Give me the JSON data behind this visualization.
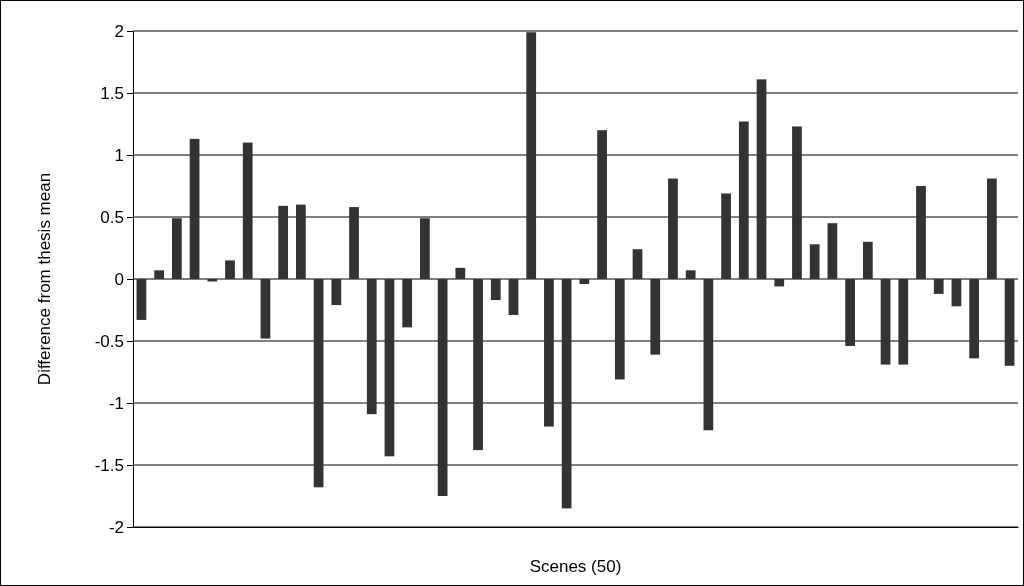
{
  "chart_data": {
    "type": "bar",
    "xlabel": "Scenes (50)",
    "ylabel": "Difference from thesis mean",
    "categories": [
      null,
      null,
      null,
      null,
      null,
      null,
      null,
      null,
      null,
      null,
      null,
      null,
      null,
      null,
      null,
      null,
      null,
      null,
      null,
      null,
      null,
      null,
      null,
      null,
      null,
      null,
      null,
      null,
      null,
      null,
      null,
      null,
      null,
      null,
      null,
      null,
      null,
      null,
      null,
      null,
      null,
      null,
      null,
      null,
      null,
      null,
      null,
      null,
      null,
      null
    ],
    "values": [
      -0.33,
      0.07,
      0.49,
      1.13,
      -0.02,
      0.15,
      1.1,
      -0.48,
      0.59,
      0.6,
      -1.68,
      -0.21,
      0.58,
      -1.09,
      -1.43,
      -0.39,
      0.49,
      -1.75,
      0.09,
      -1.38,
      -0.17,
      -0.29,
      1.99,
      -1.19,
      -1.85,
      -0.04,
      1.2,
      -0.81,
      0.24,
      -0.61,
      0.81,
      0.07,
      -1.22,
      0.69,
      1.27,
      1.61,
      -0.06,
      1.23,
      0.28,
      0.45,
      -0.54,
      0.3,
      -0.69,
      -0.69,
      0.75,
      -0.12,
      -0.22,
      -0.64,
      0.81,
      -0.7
    ],
    "color": "#333333",
    "ylim": [
      -2,
      2
    ],
    "yticks": [
      -2,
      -1.5,
      -1,
      -0.5,
      0,
      0.5,
      1,
      1.5,
      2
    ],
    "grid": "y",
    "tick_labels": "y"
  }
}
